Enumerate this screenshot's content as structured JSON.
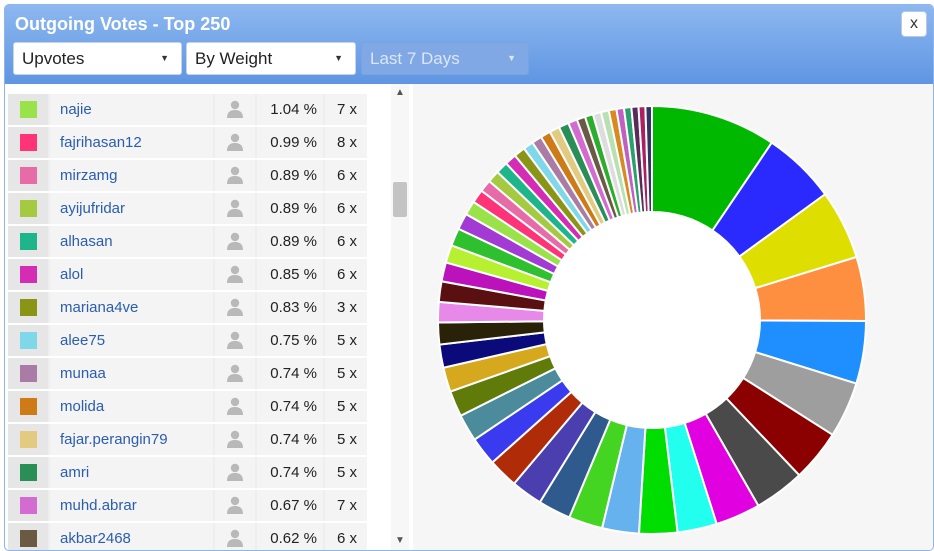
{
  "dialog": {
    "title": "Outgoing Votes - Top 250",
    "close_label": "x"
  },
  "filters": {
    "type": "Upvotes",
    "sort": "By Weight",
    "range": "Last 7 Days"
  },
  "icons": {
    "user": "user-silhouette-icon",
    "dropdown": "triangle-down-icon",
    "scroll_up": "chevron-up-icon",
    "scroll_down": "chevron-down-icon"
  },
  "rows": [
    {
      "color": "#99e24a",
      "name": "najie",
      "percent": "1.04 %",
      "count": "7 x"
    },
    {
      "color": "#ff3377",
      "name": "fajrihasan12",
      "percent": "0.99 %",
      "count": "8 x"
    },
    {
      "color": "#e76ba6",
      "name": "mirzamg",
      "percent": "0.89 %",
      "count": "6 x"
    },
    {
      "color": "#a5c940",
      "name": "ayijufridar",
      "percent": "0.89 %",
      "count": "6 x"
    },
    {
      "color": "#1fb58a",
      "name": "alhasan",
      "percent": "0.89 %",
      "count": "6 x"
    },
    {
      "color": "#d42cb5",
      "name": "alol",
      "percent": "0.85 %",
      "count": "6 x"
    },
    {
      "color": "#8a9415",
      "name": "mariana4ve",
      "percent": "0.83 %",
      "count": "3 x"
    },
    {
      "color": "#7fd8ea",
      "name": "alee75",
      "percent": "0.75 %",
      "count": "5 x"
    },
    {
      "color": "#a97ba5",
      "name": "munaa",
      "percent": "0.74 %",
      "count": "5 x"
    },
    {
      "color": "#cd7a17",
      "name": "molida",
      "percent": "0.74 %",
      "count": "5 x"
    },
    {
      "color": "#e2cb80",
      "name": "fajar.perangin79",
      "percent": "0.74 %",
      "count": "5 x"
    },
    {
      "color": "#2a8f57",
      "name": "amri",
      "percent": "0.74 %",
      "count": "5 x"
    },
    {
      "color": "#d46bd0",
      "name": "muhd.abrar",
      "percent": "0.67 %",
      "count": "7 x"
    },
    {
      "color": "#6a5a44",
      "name": "akbar2468",
      "percent": "0.62 %",
      "count": "6 x"
    }
  ],
  "chart_data": {
    "type": "pie",
    "style": "donut",
    "slices": [
      {
        "color": "#00b800",
        "value": 9.2
      },
      {
        "color": "#2a2aff",
        "value": 5.4
      },
      {
        "color": "#dede00",
        "value": 5.1
      },
      {
        "color": "#ff8f40",
        "value": 4.7
      },
      {
        "color": "#1f8fff",
        "value": 4.6
      },
      {
        "color": "#9e9e9e",
        "value": 4.1
      },
      {
        "color": "#8b0000",
        "value": 3.8
      },
      {
        "color": "#4a4a4a",
        "value": 3.7
      },
      {
        "color": "#e000e0",
        "value": 3.3
      },
      {
        "color": "#22ffee",
        "value": 2.9
      },
      {
        "color": "#00dd00",
        "value": 2.8
      },
      {
        "color": "#66b2ee",
        "value": 2.7
      },
      {
        "color": "#44d422",
        "value": 2.5
      },
      {
        "color": "#2e5a8e",
        "value": 2.4
      },
      {
        "color": "#4b3fb0",
        "value": 2.3
      },
      {
        "color": "#b02c08",
        "value": 2.2
      },
      {
        "color": "#3a3aee",
        "value": 2.1
      },
      {
        "color": "#4b8b9b",
        "value": 2.0
      },
      {
        "color": "#607b0a",
        "value": 1.9
      },
      {
        "color": "#d6a81e",
        "value": 1.8
      },
      {
        "color": "#0a0a7a",
        "value": 1.7
      },
      {
        "color": "#2a2208",
        "value": 1.6
      },
      {
        "color": "#e888e8",
        "value": 1.5
      },
      {
        "color": "#5a1010",
        "value": 1.5
      },
      {
        "color": "#bb12bb",
        "value": 1.4
      },
      {
        "color": "#b6f030",
        "value": 1.3
      },
      {
        "color": "#2ec02e",
        "value": 1.3
      },
      {
        "color": "#a43ad4",
        "value": 1.2
      },
      {
        "color": "#99e24a",
        "value": 1.04
      },
      {
        "color": "#ff3377",
        "value": 0.99
      },
      {
        "color": "#e76ba6",
        "value": 0.89
      },
      {
        "color": "#a5c940",
        "value": 0.89
      },
      {
        "color": "#1fb58a",
        "value": 0.89
      },
      {
        "color": "#d42cb5",
        "value": 0.85
      },
      {
        "color": "#8a9415",
        "value": 0.83
      },
      {
        "color": "#7fd8ea",
        "value": 0.75
      },
      {
        "color": "#a97ba5",
        "value": 0.74
      },
      {
        "color": "#cd7a17",
        "value": 0.74
      },
      {
        "color": "#e2cb80",
        "value": 0.74
      },
      {
        "color": "#2a8f57",
        "value": 0.74
      },
      {
        "color": "#d46bd0",
        "value": 0.67
      },
      {
        "color": "#6a5a44",
        "value": 0.62
      },
      {
        "color": "#2dad2d",
        "value": 0.6
      },
      {
        "color": "#dddddd",
        "value": 0.6
      },
      {
        "color": "#b8e0b0",
        "value": 0.58
      },
      {
        "color": "#d88a20",
        "value": 0.56
      },
      {
        "color": "#c060c0",
        "value": 0.55
      },
      {
        "color": "#2aa070",
        "value": 0.54
      },
      {
        "color": "#5a2a5a",
        "value": 0.52
      },
      {
        "color": "#aa2060",
        "value": 0.5
      },
      {
        "color": "#333366",
        "value": 0.48
      }
    ]
  }
}
